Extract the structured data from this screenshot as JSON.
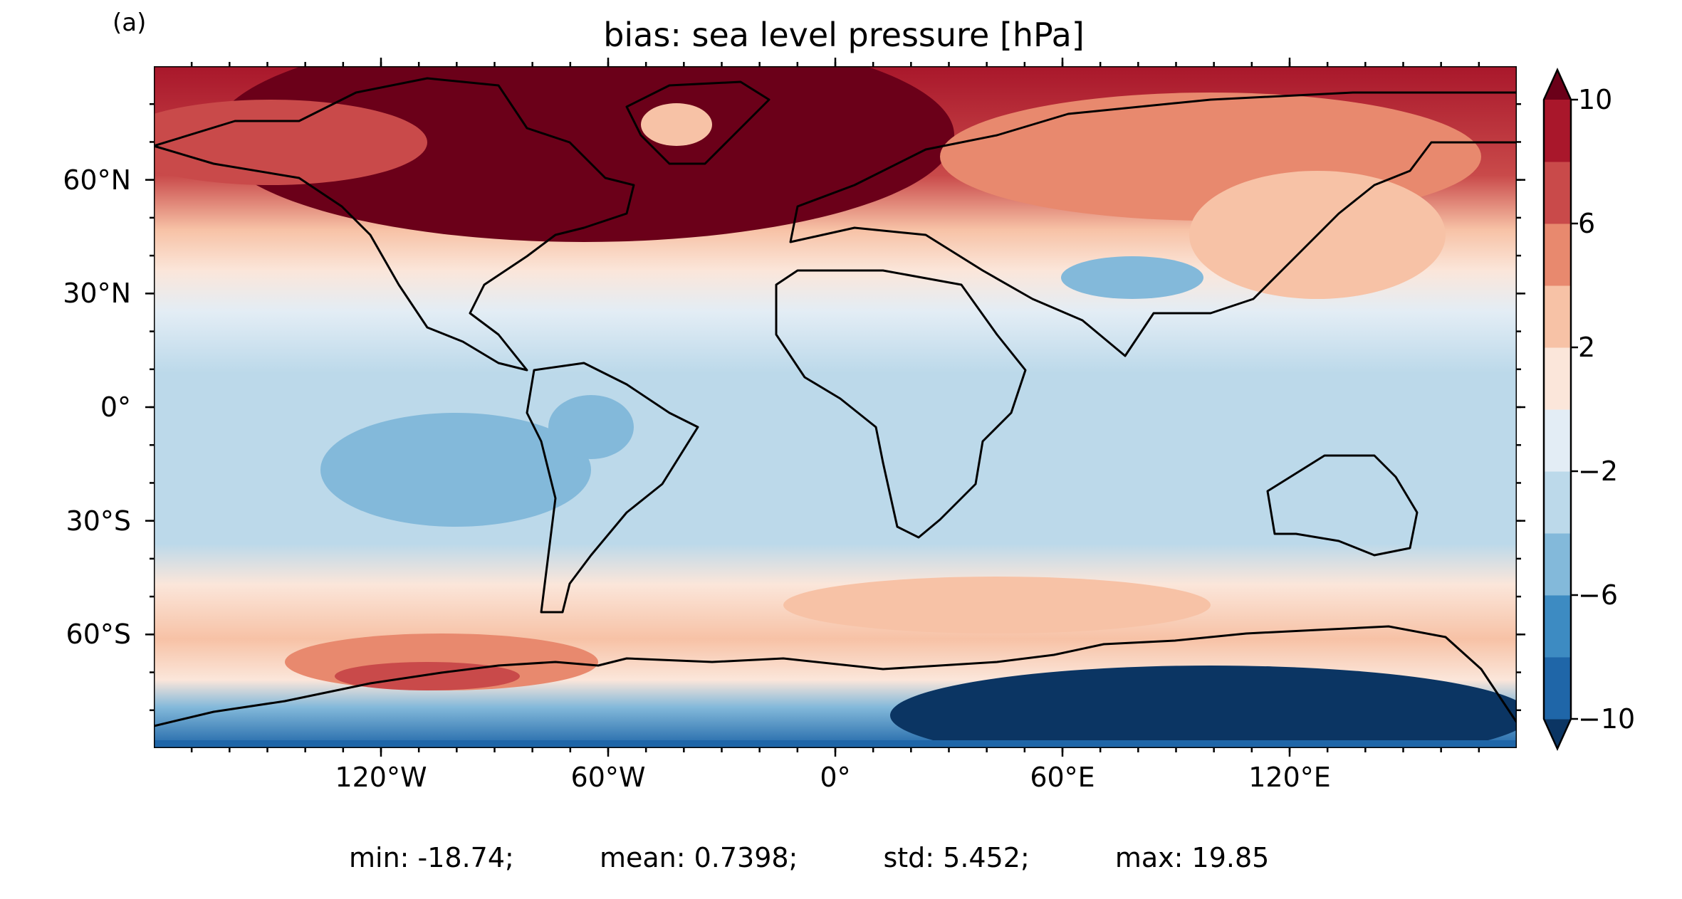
{
  "panel_label": "(a)",
  "title": "bias: sea level pressure [hPa]",
  "map": {
    "projection": "PlateCarree",
    "lon_range": [
      -180,
      180
    ],
    "lat_range": [
      -90,
      90
    ],
    "y_ticks": [
      {
        "value": 60,
        "label": "60°N"
      },
      {
        "value": 30,
        "label": "30°N"
      },
      {
        "value": 0,
        "label": "0°"
      },
      {
        "value": -30,
        "label": "30°S"
      },
      {
        "value": -60,
        "label": "60°S"
      }
    ],
    "x_ticks": [
      {
        "value": -120,
        "label": "120°W"
      },
      {
        "value": -60,
        "label": "60°W"
      },
      {
        "value": 0,
        "label": "0°"
      },
      {
        "value": 60,
        "label": "60°E"
      },
      {
        "value": 120,
        "label": "120°E"
      }
    ],
    "coastlines": true,
    "colormap": "RdBu_r"
  },
  "colorbar": {
    "levels": [
      -10,
      -8,
      -6,
      -4,
      -2,
      0,
      2,
      4,
      6,
      8,
      10
    ],
    "tick_labels": [
      {
        "value": 10,
        "label": "10"
      },
      {
        "value": 6,
        "label": "6"
      },
      {
        "value": 2,
        "label": "2"
      },
      {
        "value": -2,
        "label": "−2"
      },
      {
        "value": -6,
        "label": "−6"
      },
      {
        "value": -10,
        "label": "−10"
      }
    ],
    "extend": "both",
    "colors": [
      "#0b3563",
      "#1f66a8",
      "#3d8bc2",
      "#83b9da",
      "#bcd9ea",
      "#e3edf5",
      "#fbe6da",
      "#f7c2a6",
      "#e8896e",
      "#c94a4a",
      "#a9172b",
      "#6b0019"
    ]
  },
  "stats": {
    "min": "min: -18.74;",
    "mean": "mean: 0.7398;",
    "std": "std: 5.452;",
    "max": "max: 19.85"
  }
}
